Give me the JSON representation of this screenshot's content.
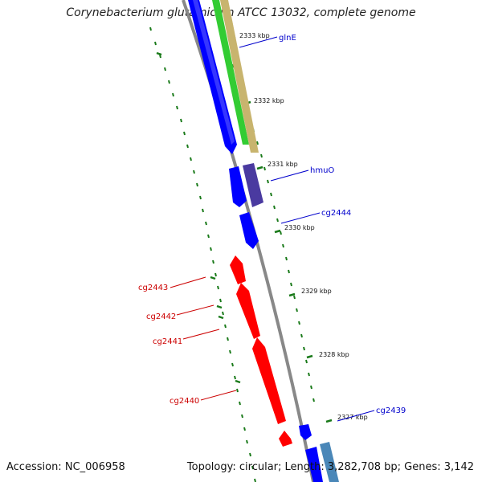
{
  "title": "Corynebacterium glutamicum ATCC 13032, complete genome",
  "footer": {
    "accession_label": "Accession:",
    "accession": "NC_006958",
    "topology_text": "Topology: circular; Length: 3,282,708 bp; Genes: 3,142"
  },
  "colors": {
    "forward": "#0000ff",
    "reverse": "#ff0000",
    "backbone": "#888888",
    "gc_ticks": "#1a7a1a",
    "feature_green": "#33cc33",
    "feature_tan": "#c8b46e",
    "feature_purple": "#4a3aa0",
    "feature_steel": "#4a87b8"
  },
  "ticks": [
    {
      "label": "2333 kbp"
    },
    {
      "label": "2332 kbp"
    },
    {
      "label": "2331 kbp"
    },
    {
      "label": "2330 kbp"
    },
    {
      "label": "2329 kbp"
    },
    {
      "label": "2328 kbp"
    },
    {
      "label": "2327 kbp"
    }
  ],
  "forward_labels": [
    {
      "text": "glnE"
    },
    {
      "text": "hmuO"
    },
    {
      "text": "cg2444"
    },
    {
      "text": "cg2439"
    }
  ],
  "reverse_labels": [
    {
      "text": "cg2443"
    },
    {
      "text": "cg2442"
    },
    {
      "text": "cg2441"
    },
    {
      "text": "cg2440"
    }
  ]
}
